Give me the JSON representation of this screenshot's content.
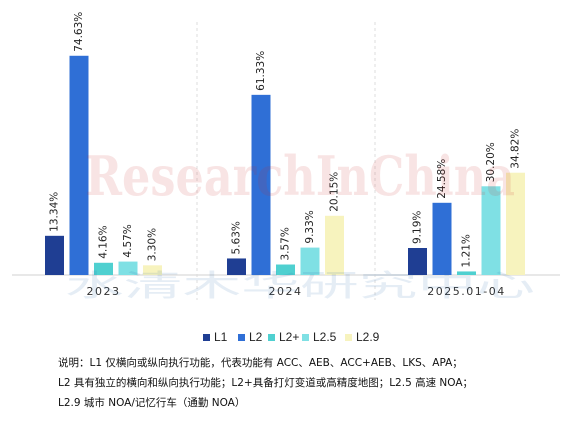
{
  "chart_data": {
    "type": "bar",
    "categories": [
      "2023",
      "2024",
      "2025.01-04"
    ],
    "series": [
      {
        "name": "L1",
        "color": "#1f3e93",
        "values": [
          13.34,
          5.63,
          9.19
        ]
      },
      {
        "name": "L2",
        "color": "#2f6fd6",
        "values": [
          74.63,
          61.33,
          24.58
        ]
      },
      {
        "name": "L2+",
        "color": "#4fd0d0",
        "values": [
          4.16,
          3.57,
          1.21
        ]
      },
      {
        "name": "L2.5",
        "color": "#7fe0e4",
        "values": [
          4.57,
          9.33,
          30.2
        ]
      },
      {
        "name": "L2.9",
        "color": "#f7f3be",
        "values": [
          3.3,
          20.15,
          34.82
        ]
      }
    ],
    "data_labels": [
      [
        "13.34%",
        "74.63%",
        "4.16%",
        "4.57%",
        "3.30%"
      ],
      [
        "5.63%",
        "61.33%",
        "3.57%",
        "9.33%",
        "20.15%"
      ],
      [
        "9.19%",
        "24.58%",
        "1.21%",
        "30.20%",
        "34.82%"
      ]
    ],
    "ylim": [
      0,
      80
    ],
    "legend_position": "bottom"
  },
  "watermark": {
    "text": "ResearchInChina",
    "cn_text": "水清木华研究中心"
  },
  "note": {
    "line1": "说明：L1 仅横向或纵向执行功能，代表功能有 ACC、AEB、ACC+AEB、LKS、APA；",
    "line2": "L2 具有独立的横向和纵向执行功能；L2+具备打灯变道或高精度地图；L2.5 高速 NOA；",
    "line3": "L2.9 城市 NOA/记忆行车（通勤 NOA）"
  }
}
